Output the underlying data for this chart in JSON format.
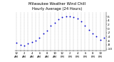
{
  "title_line1": "Milwaukee Weather Wind Chill",
  "title_line2": "Hourly Average (24 Hours)",
  "hours": [
    0,
    1,
    2,
    3,
    4,
    5,
    6,
    7,
    8,
    9,
    10,
    11,
    12,
    13,
    14,
    15,
    16,
    17,
    18,
    19,
    20,
    21,
    22,
    23
  ],
  "wind_chill": [
    -7.0,
    -8.0,
    -8.5,
    -7.5,
    -6.5,
    -6.0,
    -4.5,
    -2.5,
    -1.0,
    1.5,
    3.0,
    4.5,
    5.5,
    6.0,
    6.2,
    5.8,
    5.0,
    3.5,
    1.5,
    -0.5,
    -2.5,
    -4.0,
    -5.5,
    -4.5
  ],
  "dot_color": "#0000cc",
  "bg_color": "#ffffff",
  "grid_color": "#888888",
  "ylim_min": -11,
  "ylim_max": 8,
  "yticks": [
    -10,
    -8,
    -6,
    -4,
    -2,
    0,
    2,
    4,
    6
  ],
  "ylabel_fontsize": 3.2,
  "xlabel_fontsize": 2.8,
  "title_fontsize": 3.8,
  "dot_size": 1.8,
  "xlim_min": -0.5,
  "xlim_max": 23.5
}
